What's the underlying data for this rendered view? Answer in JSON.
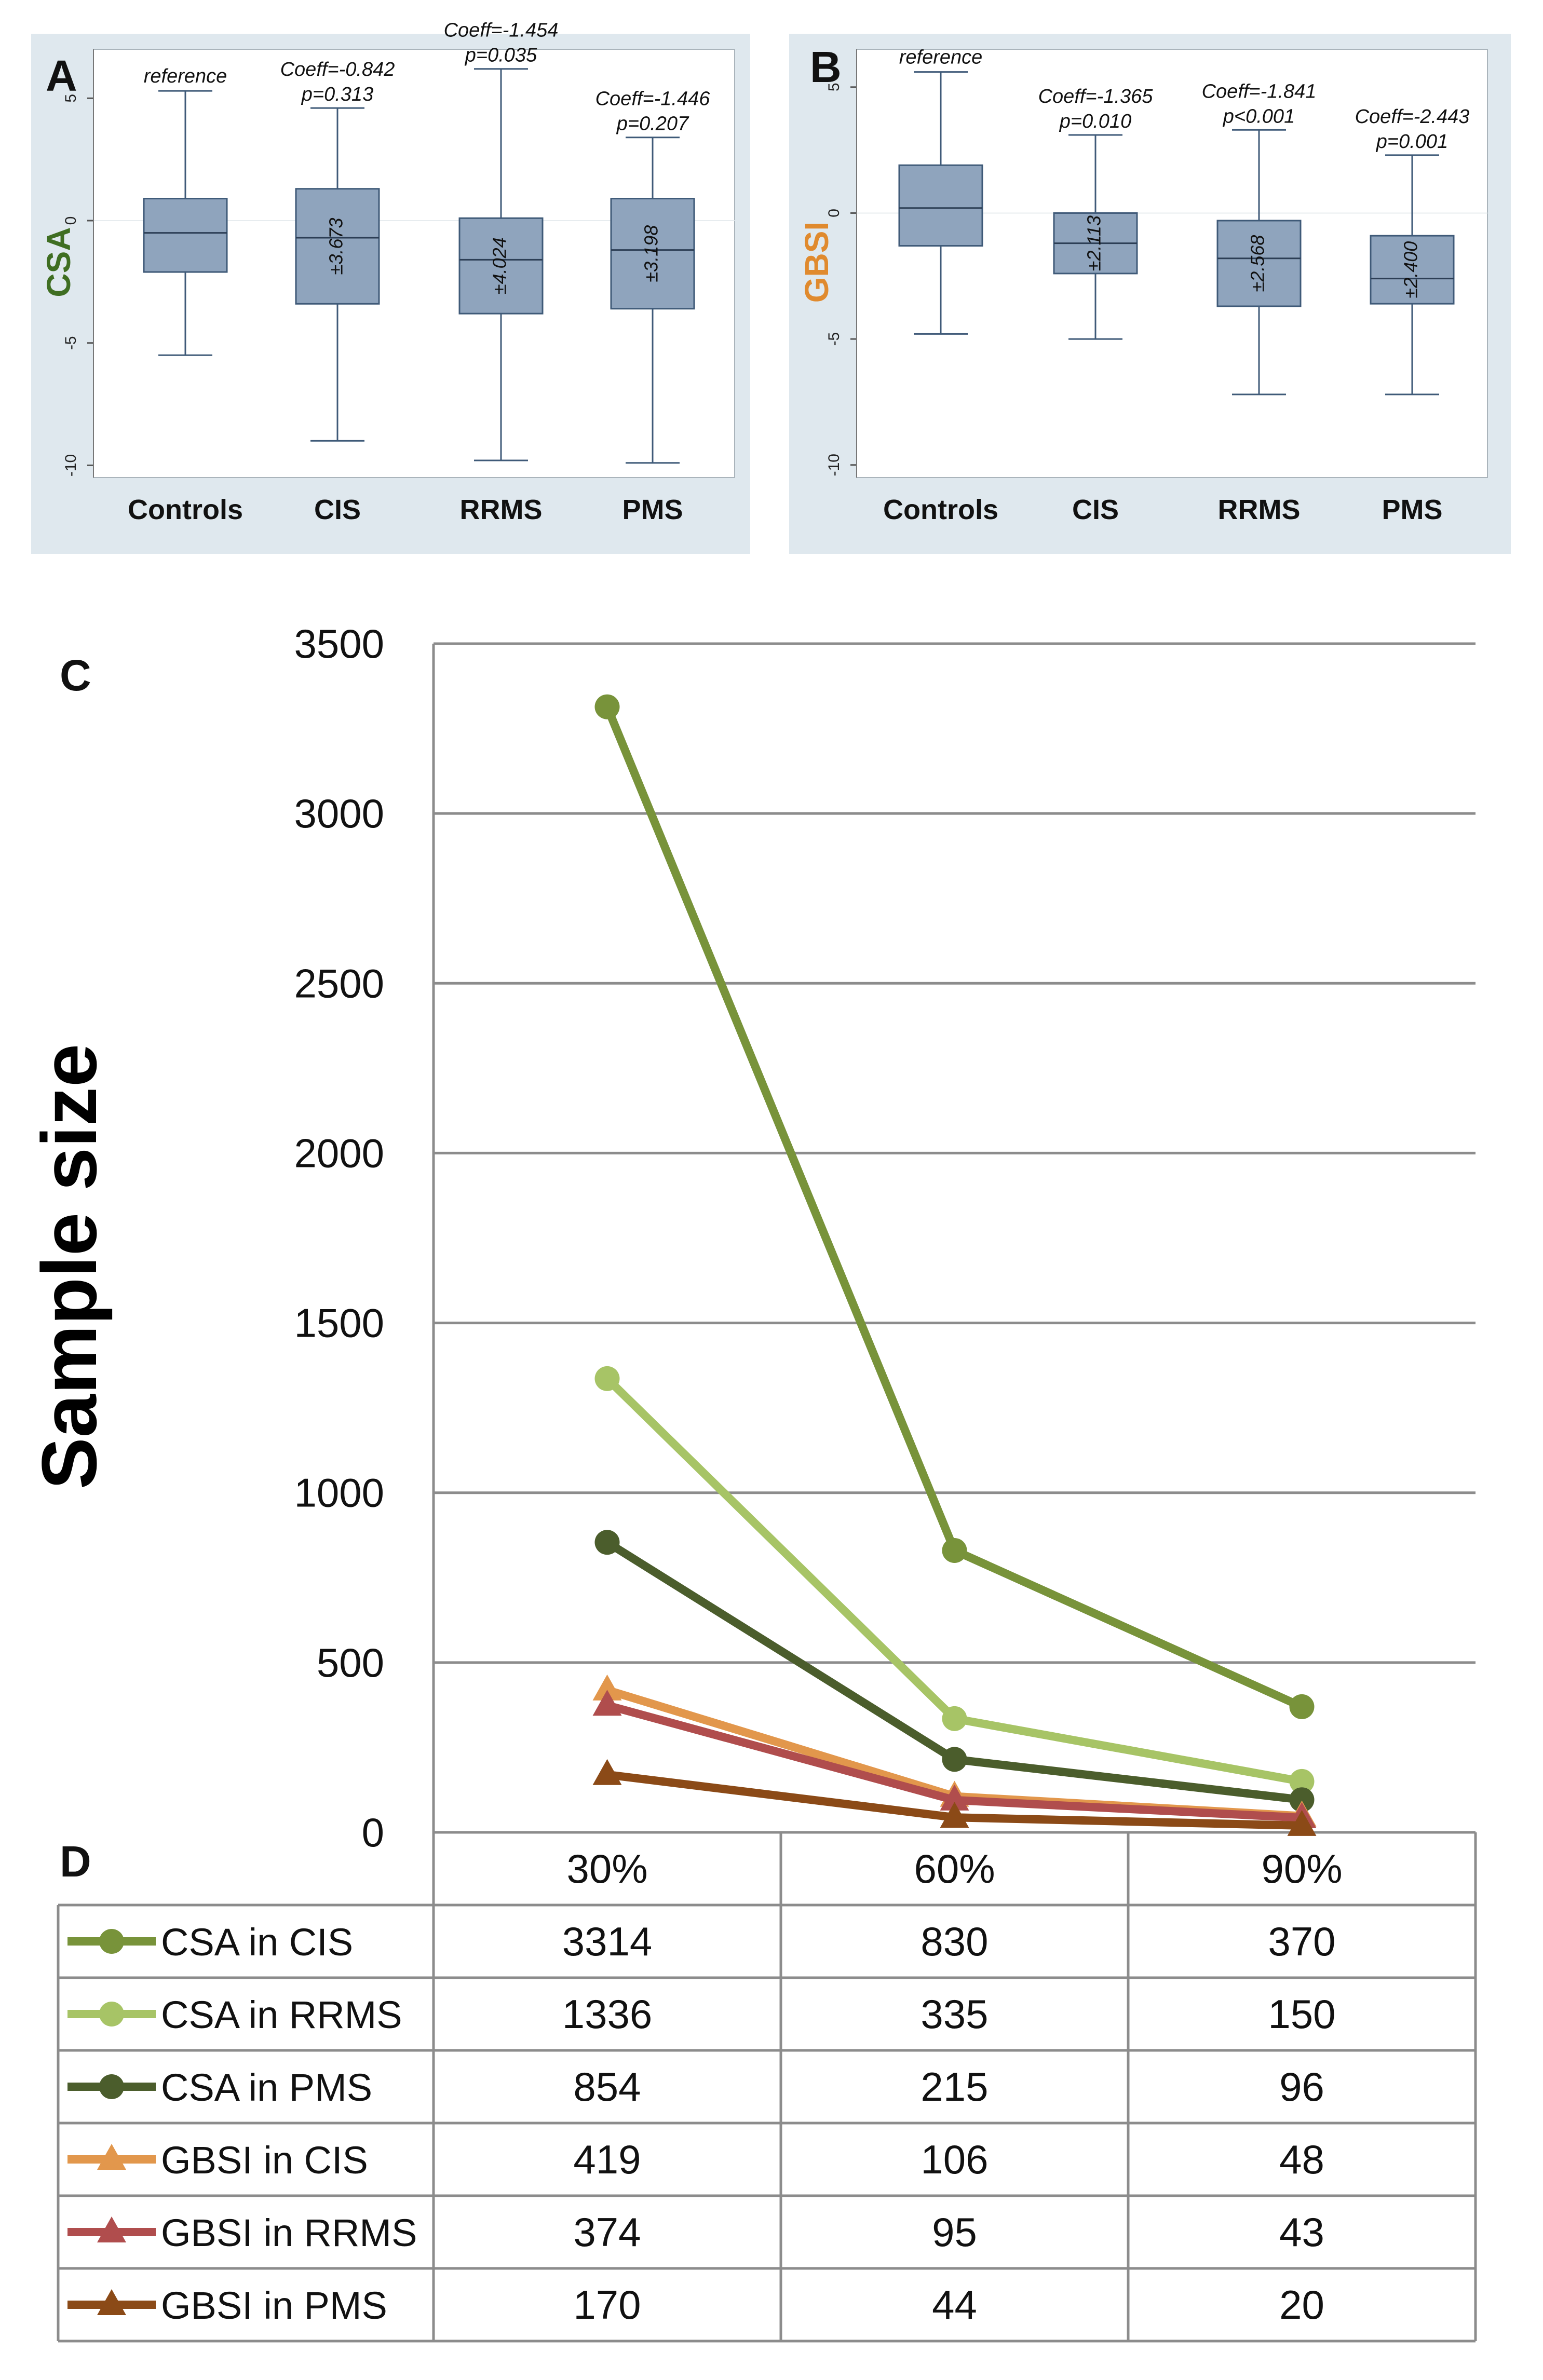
{
  "panel_a": {
    "letter": "A",
    "ylabel": "CSA",
    "ylabel_color": "#3f6e22",
    "y_ticks": [
      "5",
      "0",
      "-5",
      "-10"
    ],
    "chart_data": {
      "type": "box",
      "ylabel": "CSA",
      "ylim": [
        -10.5,
        7
      ],
      "y_ticks": [
        5,
        0,
        -5,
        -10
      ],
      "categories": [
        "Controls",
        "CIS",
        "RRMS",
        "PMS"
      ],
      "boxes": [
        {
          "whisker_low": -5.5,
          "q1": -2.1,
          "median": -0.5,
          "q3": 0.9,
          "whisker_high": 5.3
        },
        {
          "whisker_low": -9.0,
          "q1": -3.4,
          "median": -0.7,
          "q3": 1.3,
          "whisker_high": 4.6
        },
        {
          "whisker_low": -9.8,
          "q1": -3.8,
          "median": -1.6,
          "q3": 0.1,
          "whisker_high": 6.2
        },
        {
          "whisker_low": -9.9,
          "q1": -3.6,
          "median": -1.2,
          "q3": 0.9,
          "whisker_high": 3.4
        }
      ],
      "box_labels": [
        "",
        "±3.673",
        "±4.024",
        "±3.198"
      ],
      "annotations": [
        {
          "line1": "reference",
          "line2": ""
        },
        {
          "line1": "Coeff=-0.842",
          "line2": "p=0.313"
        },
        {
          "line1": "Coeff=-1.454",
          "line2": "p=0.035"
        },
        {
          "line1": "Coeff=-1.446",
          "line2": "p=0.207"
        }
      ]
    }
  },
  "panel_b": {
    "letter": "B",
    "ylabel": "GBSI",
    "ylabel_color": "#e08a2e",
    "y_ticks": [
      "5",
      "0",
      "-5",
      "-10"
    ],
    "chart_data": {
      "type": "box",
      "ylabel": "GBSI",
      "ylim": [
        -10.5,
        6.5
      ],
      "y_ticks": [
        5,
        0,
        -5,
        -10
      ],
      "categories": [
        "Controls",
        "CIS",
        "RRMS",
        "PMS"
      ],
      "boxes": [
        {
          "whisker_low": -4.8,
          "q1": -1.3,
          "median": 0.2,
          "q3": 1.9,
          "whisker_high": 5.6
        },
        {
          "whisker_low": -5.0,
          "q1": -2.4,
          "median": -1.2,
          "q3": 0.0,
          "whisker_high": 3.1
        },
        {
          "whisker_low": -7.2,
          "q1": -3.7,
          "median": -1.8,
          "q3": -0.3,
          "whisker_high": 3.3
        },
        {
          "whisker_low": -7.2,
          "q1": -3.6,
          "median": -2.6,
          "q3": -0.9,
          "whisker_high": 2.3
        }
      ],
      "box_labels": [
        "",
        "±2.113",
        "±2.568",
        "±2.400"
      ],
      "annotations": [
        {
          "line1": "reference",
          "line2": ""
        },
        {
          "line1": "Coeff=-1.365",
          "line2": "p=0.010"
        },
        {
          "line1": "Coeff=-1.841",
          "line2": "p<0.001"
        },
        {
          "line1": "Coeff=-2.443",
          "line2": "p=0.001"
        }
      ]
    }
  },
  "panel_c": {
    "letter": "C",
    "ylabel": "Sample size",
    "y_ticks": [
      "3500",
      "3000",
      "2500",
      "2000",
      "1500",
      "1000",
      "500",
      "0"
    ],
    "chart_data": {
      "type": "line",
      "ylabel": "Sample size",
      "ylim": [
        0,
        3500
      ],
      "y_ticks": [
        0,
        500,
        1000,
        1500,
        2000,
        2500,
        3000,
        3500
      ],
      "categories": [
        "30%",
        "60%",
        "90%"
      ],
      "series": [
        {
          "name": "CSA in CIS",
          "values": [
            3314,
            830,
            370
          ],
          "color": "#78933a",
          "marker": "circle"
        },
        {
          "name": "CSA in RRMS",
          "values": [
            1336,
            335,
            150
          ],
          "color": "#a7c466",
          "marker": "circle"
        },
        {
          "name": "CSA in PMS",
          "values": [
            854,
            215,
            96
          ],
          "color": "#4b5d2c",
          "marker": "circle"
        },
        {
          "name": "GBSI in CIS",
          "values": [
            419,
            106,
            48
          ],
          "color": "#e2974c",
          "marker": "triangle"
        },
        {
          "name": "GBSI in RRMS",
          "values": [
            374,
            95,
            43
          ],
          "color": "#b04d4d",
          "marker": "triangle"
        },
        {
          "name": "GBSI in PMS",
          "values": [
            170,
            44,
            20
          ],
          "color": "#8b4a17",
          "marker": "triangle"
        }
      ]
    }
  },
  "panel_d": {
    "letter": "D",
    "columns": [
      "30%",
      "60%",
      "90%"
    ],
    "rows": [
      {
        "label": "CSA in CIS",
        "values": [
          "3314",
          "830",
          "370"
        ]
      },
      {
        "label": "CSA in RRMS",
        "values": [
          "1336",
          "335",
          "150"
        ]
      },
      {
        "label": "CSA in PMS",
        "values": [
          "854",
          "215",
          "96"
        ]
      },
      {
        "label": "GBSI in CIS",
        "values": [
          "419",
          "106",
          "48"
        ]
      },
      {
        "label": "GBSI in RRMS",
        "values": [
          "374",
          "95",
          "43"
        ]
      },
      {
        "label": "GBSI in PMS",
        "values": [
          "170",
          "44",
          "20"
        ]
      }
    ]
  }
}
